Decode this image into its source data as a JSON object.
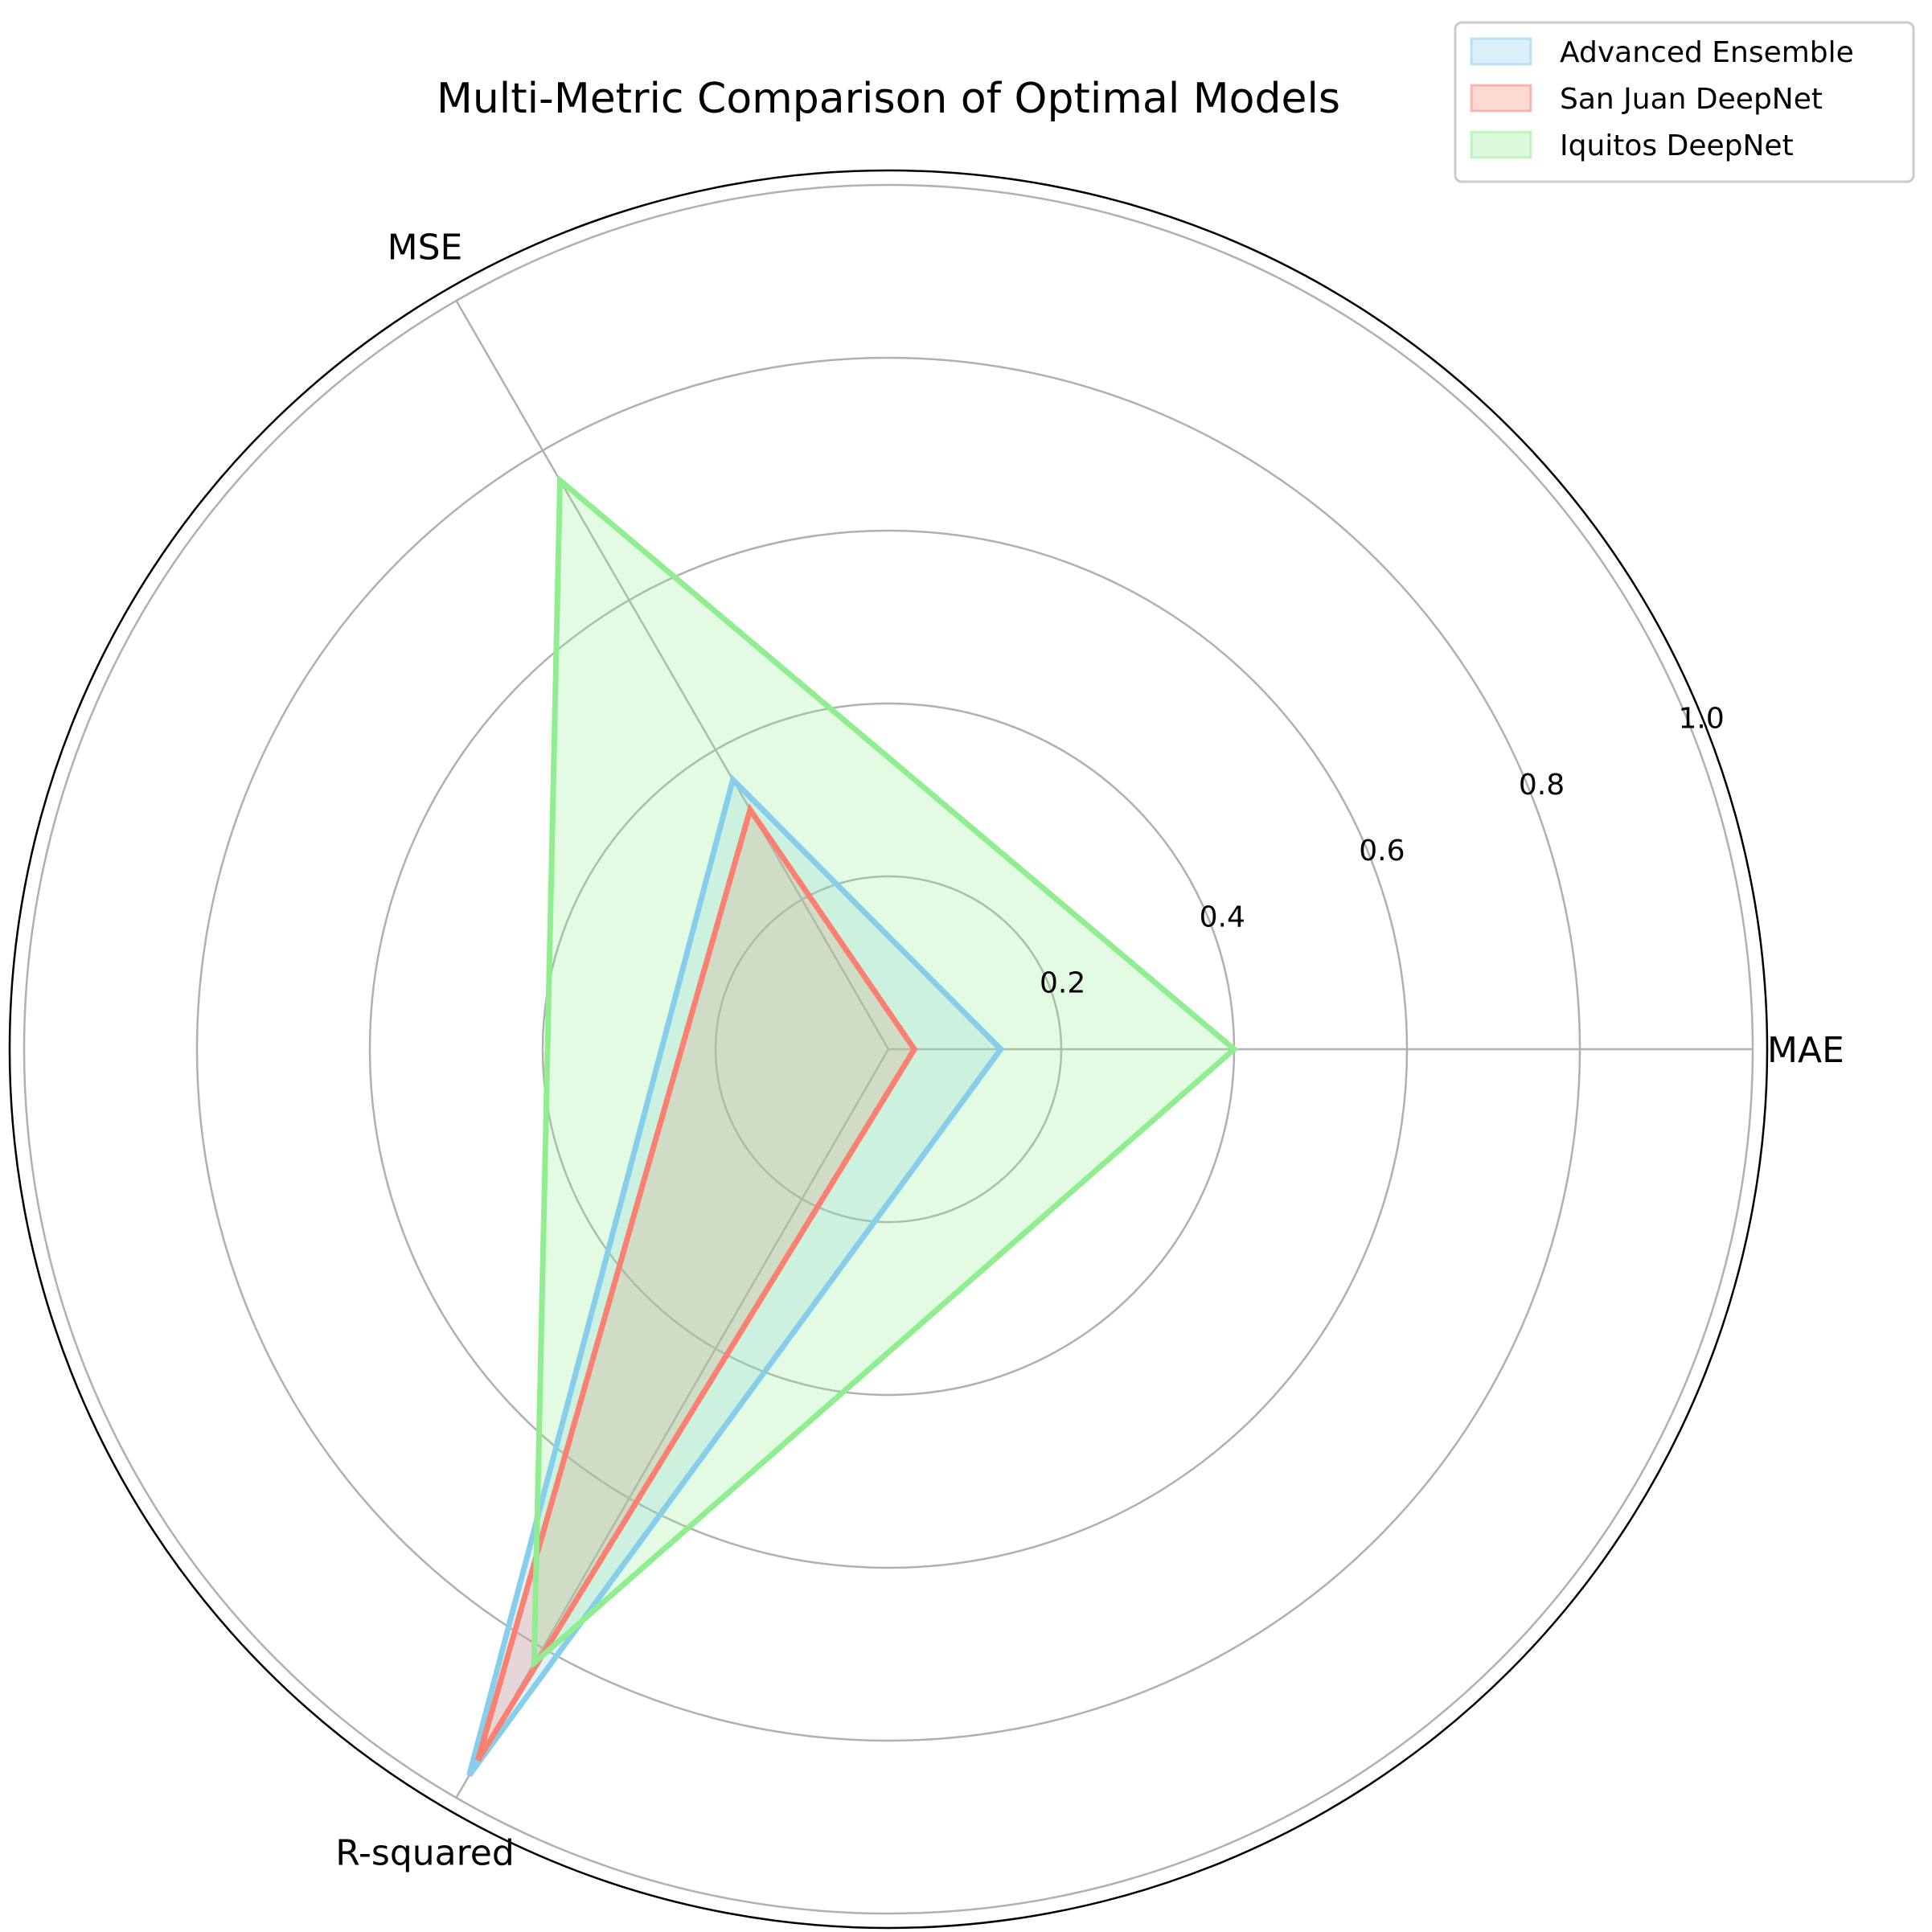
{
  "chart_data": {
    "type": "radar",
    "title": "Multi-Metric Comparison of Optimal Models",
    "axes": [
      "MAE",
      "MSE",
      "R-squared"
    ],
    "rlim": [
      0,
      1.0
    ],
    "rticks": [
      0.2,
      0.4,
      0.6,
      0.8,
      1.0
    ],
    "rtick_labels": [
      "0.2",
      "0.4",
      "0.6",
      "0.8",
      "1.0"
    ],
    "grid": true,
    "legend_position": "top-right",
    "series": [
      {
        "name": "Advanced Ensemble",
        "color": "#87ceeb",
        "values": [
          0.13,
          0.36,
          0.97
        ]
      },
      {
        "name": "San Juan DeepNet",
        "color": "#fa8072",
        "values": [
          0.03,
          0.32,
          0.95
        ]
      },
      {
        "name": "Iquitos DeepNet",
        "color": "#90ee90",
        "values": [
          0.4,
          0.76,
          0.82
        ]
      }
    ]
  }
}
